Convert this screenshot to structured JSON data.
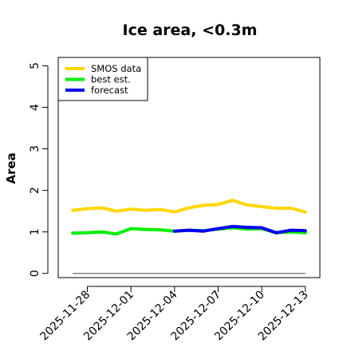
{
  "chart_data": {
    "type": "line",
    "title": "Ice area, <0.3m",
    "xlabel": "",
    "ylabel": "Area",
    "ylim": [
      -0.1,
      5.2
    ],
    "y_ticks": [
      0,
      1,
      2,
      3,
      4,
      5
    ],
    "x_range": [
      "2025-11-26",
      "2025-12-14"
    ],
    "x_ticks": [
      {
        "date": "2025-11-28",
        "label": "2025-11-28",
        "color": "#000000"
      },
      {
        "date": "2025-12-01",
        "label": "2025-12-01",
        "color": "#000000"
      },
      {
        "date": "2025-12-04",
        "label": "2025-12-04",
        "color": "#228B22"
      },
      {
        "date": "2025-12-07",
        "label": "2025-12-07",
        "color": "#000000"
      },
      {
        "date": "2025-12-10",
        "label": "2025-12-10",
        "color": "#000000"
      },
      {
        "date": "2025-12-13",
        "label": "2025-12-13",
        "color": "#000000"
      }
    ],
    "legend": {
      "position": "top-left",
      "box": true
    },
    "grid": false,
    "baseline": {
      "y": 0,
      "color": "#808080"
    },
    "series": [
      {
        "name": "SMOS data",
        "color": "#FFD700",
        "x": [
          "2025-11-27",
          "2025-11-28",
          "2025-11-29",
          "2025-11-30",
          "2025-12-01",
          "2025-12-02",
          "2025-12-03",
          "2025-12-04",
          "2025-12-05",
          "2025-12-06",
          "2025-12-07",
          "2025-12-08",
          "2025-12-09",
          "2025-12-10",
          "2025-12-11",
          "2025-12-12",
          "2025-12-13"
        ],
        "y": [
          1.52,
          1.56,
          1.58,
          1.5,
          1.55,
          1.52,
          1.54,
          1.48,
          1.58,
          1.64,
          1.66,
          1.76,
          1.65,
          1.61,
          1.57,
          1.57,
          1.48
        ]
      },
      {
        "name": "best est.",
        "color": "#00EE00",
        "x": [
          "2025-11-27",
          "2025-11-28",
          "2025-11-29",
          "2025-11-30",
          "2025-12-01",
          "2025-12-02",
          "2025-12-03",
          "2025-12-04",
          "2025-12-05",
          "2025-12-06",
          "2025-12-07",
          "2025-12-08",
          "2025-12-09",
          "2025-12-10",
          "2025-12-11",
          "2025-12-12",
          "2025-12-13"
        ],
        "y": [
          0.97,
          0.98,
          1.0,
          0.95,
          1.08,
          1.06,
          1.05,
          1.02,
          1.04,
          1.03,
          1.07,
          1.1,
          1.07,
          1.08,
          0.98,
          1.0,
          0.98
        ]
      },
      {
        "name": "forecast",
        "color": "#0000EE",
        "x": [
          "2025-12-04",
          "2025-12-05",
          "2025-12-06",
          "2025-12-07",
          "2025-12-08",
          "2025-12-09",
          "2025-12-10",
          "2025-12-11",
          "2025-12-12",
          "2025-12-13"
        ],
        "y": [
          1.02,
          1.04,
          1.02,
          1.08,
          1.13,
          1.11,
          1.1,
          0.98,
          1.04,
          1.03
        ]
      }
    ]
  }
}
